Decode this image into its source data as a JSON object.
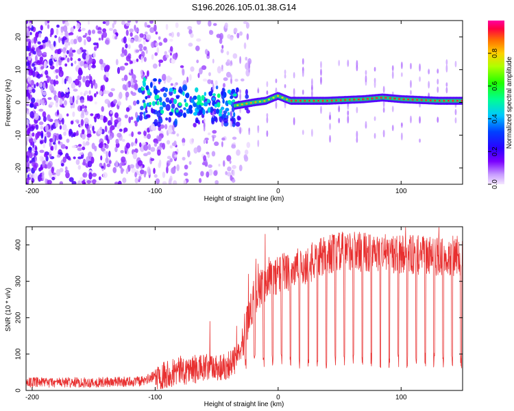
{
  "title": "S196.2026.105.01.38.G14",
  "chart_data": [
    {
      "type": "heatmap",
      "title": "S196.2026.105.01.38.G14",
      "xlabel": "Height of straight line (km)",
      "ylabel": "Frequency (Hz)",
      "xlim": [
        -205,
        150
      ],
      "ylim": [
        -25,
        25
      ],
      "xticks": [
        -200,
        -100,
        0,
        100
      ],
      "yticks": [
        -20,
        -10,
        0,
        10,
        20
      ],
      "xtick_labels": [
        "-200",
        "-100",
        "0",
        "100"
      ],
      "ytick_labels": [
        "-20",
        "-10",
        "0",
        "10",
        "20"
      ],
      "colorbar": {
        "label": "Normalized spectral amplitude",
        "range": [
          0,
          1
        ],
        "ticks": [
          0.0,
          0.2,
          0.4,
          0.6,
          0.8
        ],
        "tick_labels": [
          "0.0",
          "0.2",
          "0.4",
          "0.6",
          "0.8"
        ]
      },
      "description_points": {
        "carrier_line_x": [
          -35,
          -20,
          -10,
          0,
          10,
          40,
          70,
          85,
          100,
          130,
          150
        ],
        "carrier_line_freq": [
          -1,
          0,
          0.5,
          2,
          0.5,
          0.5,
          1,
          1.5,
          1,
          0.5,
          0.5
        ],
        "noise_region_end_x": -35
      }
    },
    {
      "type": "line",
      "xlabel": "Height of straight line (km)",
      "ylabel": "SNR (10 * v/v)",
      "xlim": [
        -205,
        150
      ],
      "ylim": [
        0,
        450
      ],
      "xticks": [
        -200,
        -100,
        0,
        100
      ],
      "yticks": [
        0,
        100,
        200,
        300,
        400
      ],
      "xtick_labels": [
        "-200",
        "-100",
        "0",
        "100"
      ],
      "ytick_labels": [
        "0",
        "100",
        "200",
        "300",
        "400"
      ],
      "series": [
        {
          "name": "SNR",
          "color": "#e83030",
          "x_knots": [
            -205,
            -150,
            -110,
            -100,
            -80,
            -60,
            -45,
            -35,
            -28,
            -20,
            -10,
            0,
            10,
            20,
            30,
            40,
            60,
            80,
            100,
            120,
            150
          ],
          "y_knots": [
            22,
            22,
            25,
            40,
            55,
            60,
            65,
            80,
            150,
            250,
            300,
            320,
            330,
            340,
            355,
            375,
            385,
            375,
            375,
            370,
            370
          ],
          "dropout_start_x": -5,
          "dropout_period_km": 7.3,
          "dropout_level": 90
        }
      ]
    }
  ]
}
